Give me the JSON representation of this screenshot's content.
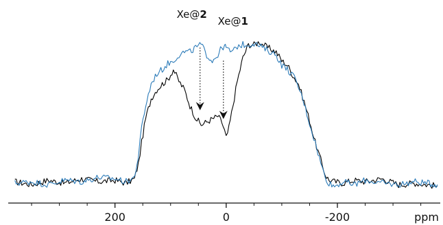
{
  "chart_data": {
    "type": "line",
    "xlabel": "ppm",
    "x_reversed": true,
    "xlim": [
      392,
      -385
    ],
    "ylim": [
      -0.06,
      1.06
    ],
    "x_ticks": [
      200,
      0,
      -200
    ],
    "x_tick_labels": [
      "200",
      "0",
      "-200"
    ],
    "minor_tick_step": 50,
    "grid": false,
    "legend": "none",
    "series": [
      {
        "color": "#000000",
        "x": [
          380,
          350,
          320,
          290,
          260,
          230,
          200,
          180,
          165,
          158,
          152,
          145,
          135,
          125,
          115,
          105,
          95,
          85,
          75,
          65,
          55,
          45,
          35,
          25,
          15,
          8,
          3,
          0,
          -5,
          -12,
          -20,
          -30,
          -40,
          -50,
          -60,
          -70,
          -80,
          -90,
          -100,
          -110,
          -120,
          -130,
          -140,
          -150,
          -160,
          -170,
          -178,
          -185,
          -195,
          -210,
          -230,
          -250,
          -280,
          -310,
          -340,
          -380
        ],
        "y": [
          0.03,
          0.01,
          0.04,
          0.02,
          0.05,
          0.03,
          0.04,
          0.02,
          0.05,
          0.15,
          0.3,
          0.46,
          0.6,
          0.66,
          0.7,
          0.73,
          0.8,
          0.72,
          0.66,
          0.55,
          0.47,
          0.42,
          0.44,
          0.46,
          0.48,
          0.44,
          0.38,
          0.33,
          0.4,
          0.55,
          0.72,
          0.88,
          0.97,
          0.97,
          0.99,
          0.96,
          0.94,
          0.92,
          0.86,
          0.83,
          0.76,
          0.7,
          0.58,
          0.45,
          0.3,
          0.18,
          0.08,
          0.04,
          0.03,
          0.02,
          0.04,
          0.03,
          0.05,
          0.01,
          0.02,
          0.0
        ]
      },
      {
        "color": "#2a7ab8",
        "x": [
          380,
          350,
          320,
          290,
          260,
          230,
          200,
          180,
          165,
          158,
          152,
          145,
          135,
          125,
          115,
          105,
          95,
          85,
          75,
          65,
          55,
          45,
          35,
          25,
          15,
          8,
          3,
          0,
          -5,
          -12,
          -20,
          -30,
          -40,
          -50,
          -60,
          -70,
          -80,
          -90,
          -100,
          -110,
          -120,
          -130,
          -140,
          -150,
          -160,
          -170,
          -178,
          -185,
          -195,
          -210,
          -230,
          -250,
          -280,
          -310,
          -340,
          -380
        ],
        "y": [
          0.02,
          0.03,
          0.01,
          0.04,
          0.03,
          0.06,
          0.05,
          0.03,
          0.06,
          0.2,
          0.4,
          0.55,
          0.7,
          0.77,
          0.8,
          0.84,
          0.86,
          0.9,
          0.92,
          0.92,
          0.95,
          0.97,
          0.9,
          0.86,
          0.9,
          0.95,
          0.96,
          0.95,
          0.93,
          0.92,
          0.96,
          0.97,
          0.97,
          0.98,
          0.96,
          0.94,
          0.92,
          0.9,
          0.83,
          0.8,
          0.76,
          0.68,
          0.57,
          0.43,
          0.3,
          0.16,
          0.06,
          0.02,
          0.0,
          0.03,
          0.01,
          0.04,
          0.02,
          0.01,
          0.03,
          0.01
        ]
      }
    ],
    "annotations": [
      {
        "prefix": "Xe@",
        "bold": "2",
        "x_ppm": 47,
        "arrow_from_y": 0.95,
        "arrow_to_y": 0.52
      },
      {
        "prefix": "Xe@",
        "bold": "1",
        "x_ppm": 5,
        "arrow_from_y": 0.86,
        "arrow_to_y": 0.46
      }
    ]
  }
}
